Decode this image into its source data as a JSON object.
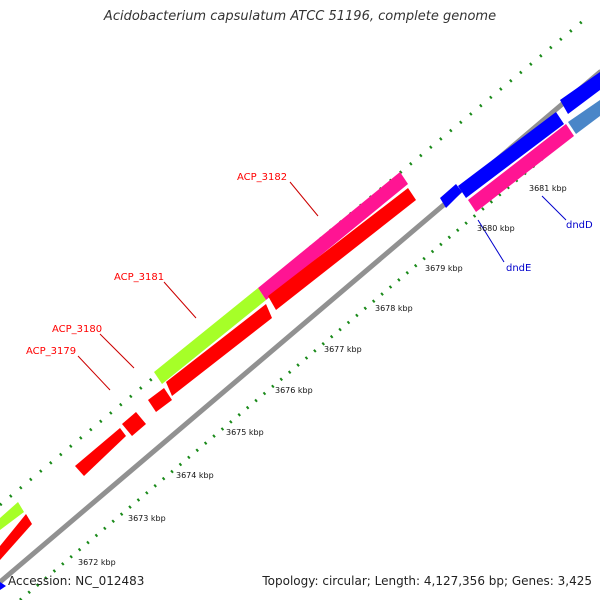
{
  "title": "Acidobacterium capsulatum ATCC 51196, complete genome",
  "footer": {
    "accession": "Accession: NC_012483",
    "summary": "Topology: circular; Length: 4,127,356 bp; Genes: 3,425"
  },
  "ticks": [
    "3672 kbp",
    "3673 kbp",
    "3674 kbp",
    "3675 kbp",
    "3676 kbp",
    "3677 kbp",
    "3678 kbp",
    "3679 kbp",
    "3680 kbp",
    "3681 kbp"
  ],
  "genes": {
    "acp3179": "ACP_3179",
    "acp3180": "ACP_3180",
    "acp3181": "ACP_3181",
    "acp3182": "ACP_3182",
    "dndE": "dndE",
    "dndD": "dndD"
  },
  "colors": {
    "red_gene": "#ff0000",
    "pink_gene": "#ff1493",
    "green_gene": "#a6ff28",
    "blue_gene": "#0000ff",
    "steel_gene": "#4a86c8",
    "backbone": "#8c8c8c",
    "tick_dots": "#1a8a1a",
    "label_red": "#ff0000",
    "label_blue": "#0000cc"
  }
}
